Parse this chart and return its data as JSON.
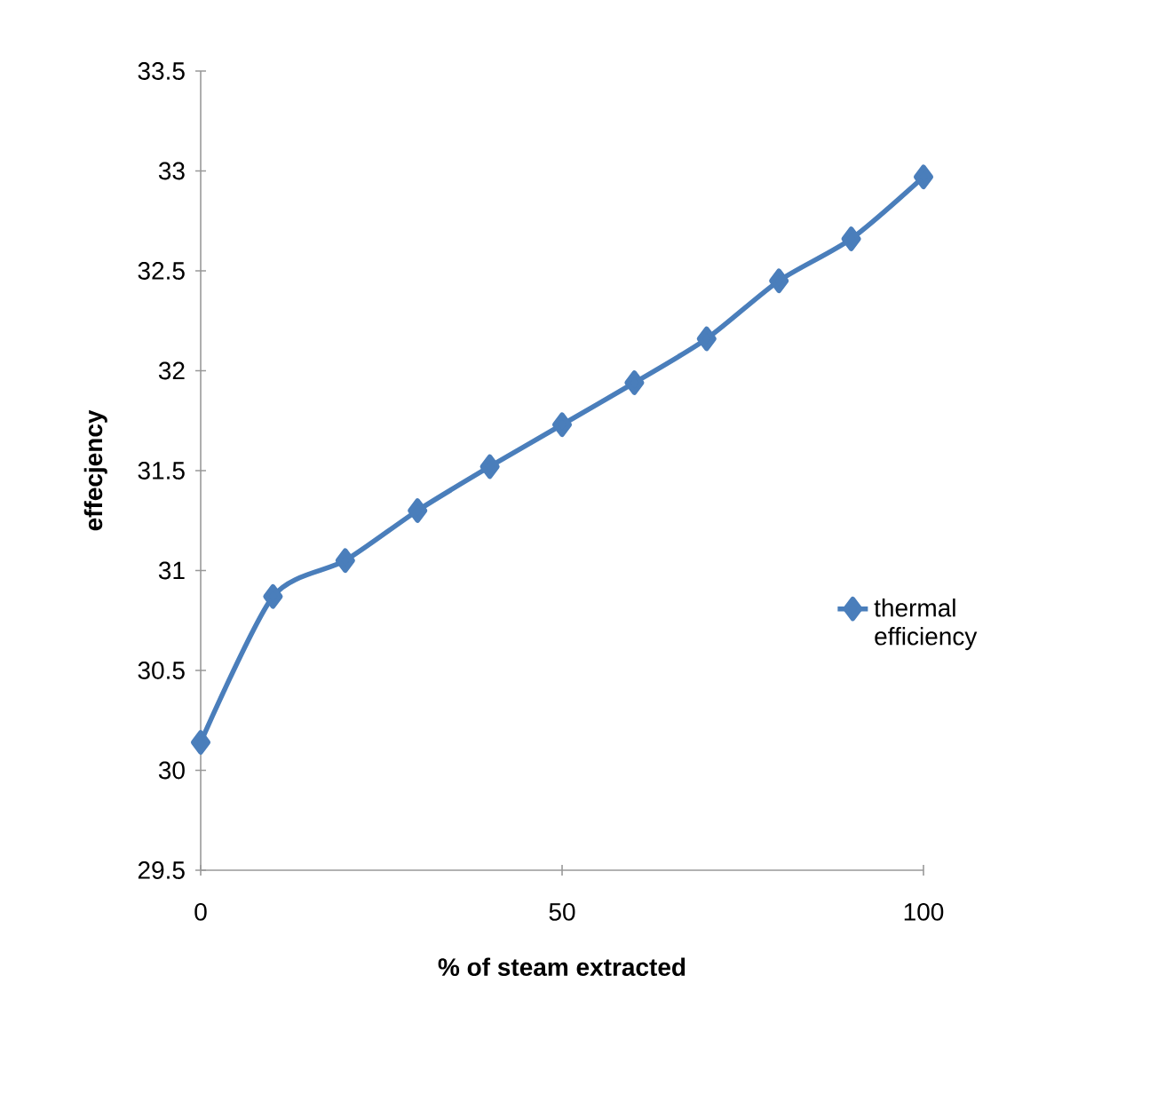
{
  "chart_data": {
    "type": "line",
    "xlabel": "% of steam extracted",
    "ylabel": "effecjency",
    "x": [
      0,
      10,
      20,
      30,
      40,
      50,
      60,
      70,
      80,
      90,
      100
    ],
    "series": [
      {
        "name": "thermal efficiency",
        "color": "#4a7ebb",
        "values": [
          30.14,
          30.87,
          31.05,
          31.3,
          31.52,
          31.73,
          31.94,
          32.16,
          32.45,
          32.66,
          32.97
        ]
      }
    ],
    "xlim": [
      0,
      100
    ],
    "xticks": [
      0,
      50,
      100
    ],
    "ylim": [
      29.5,
      33.5
    ],
    "yticks": [
      29.5,
      30,
      30.5,
      31,
      31.5,
      32,
      32.5,
      33,
      33.5
    ],
    "legend": "right",
    "marker": "diamond",
    "line_style": "solid"
  }
}
